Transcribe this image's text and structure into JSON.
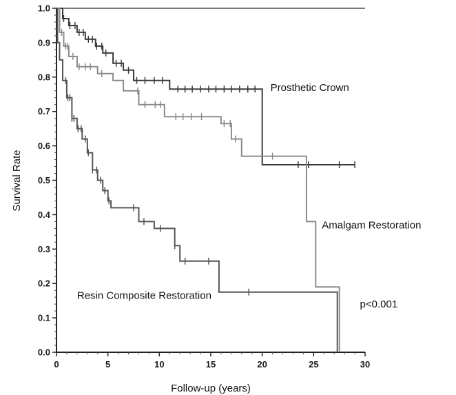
{
  "chart_data": {
    "type": "line",
    "xlabel": "Follow-up (years)",
    "ylabel": "Survival Rate",
    "xlim": [
      0,
      30
    ],
    "ylim": [
      0,
      1
    ],
    "x_ticks": [
      "0",
      "5",
      "10",
      "15",
      "20",
      "25",
      "30"
    ],
    "y_ticks": [
      "0.0",
      "0.1",
      "0.2",
      "0.3",
      "0.4",
      "0.5",
      "0.6",
      "0.7",
      "0.8",
      "0.9",
      "1.0"
    ],
    "step": true,
    "grid": false,
    "series": [
      {
        "name": "Prosthetic Crown",
        "color": "#3a3a3a",
        "x": [
          0,
          0.6,
          1.2,
          2.0,
          2.8,
          3.8,
          4.5,
          5.5,
          6.5,
          7.5,
          8.5,
          11.0,
          16.0,
          20.0,
          29.0
        ],
        "y": [
          1.0,
          0.97,
          0.95,
          0.93,
          0.91,
          0.89,
          0.87,
          0.84,
          0.82,
          0.79,
          0.79,
          0.765,
          0.765,
          0.545,
          0.545
        ],
        "censored_x": [
          0.7,
          1.3,
          1.8,
          2.2,
          2.6,
          3.1,
          3.5,
          3.9,
          4.4,
          4.8,
          5.8,
          6.3,
          7.0,
          7.8,
          8.6,
          9.5,
          10.3,
          11.8,
          12.5,
          13.2,
          14.0,
          14.8,
          15.5,
          16.3,
          17.0,
          17.8,
          18.6,
          19.3,
          23.5,
          24.5,
          27.5,
          29.0
        ]
      },
      {
        "name": "Amalgam Restoration",
        "color": "#8a8a8a",
        "x": [
          0,
          0.3,
          0.7,
          1.2,
          2.0,
          4.0,
          5.5,
          6.5,
          8.0,
          10.5,
          16.0,
          17.0,
          18.0,
          24.0,
          24.3,
          25.2,
          27.5
        ],
        "y": [
          1.0,
          0.93,
          0.89,
          0.86,
          0.83,
          0.81,
          0.79,
          0.76,
          0.72,
          0.685,
          0.665,
          0.62,
          0.57,
          0.57,
          0.38,
          0.19,
          0.0
        ],
        "censored_x": [
          0.5,
          0.9,
          1.1,
          1.6,
          2.2,
          2.8,
          3.3,
          4.4,
          7.9,
          8.6,
          9.6,
          10.1,
          11.6,
          12.3,
          13.1,
          14.1,
          16.3,
          16.9,
          17.4,
          21.0
        ]
      },
      {
        "name": "Resin Composite Restoration",
        "color": "#555555",
        "x": [
          0,
          0.1,
          0.3,
          0.6,
          1.0,
          1.5,
          2.0,
          2.5,
          3.0,
          3.5,
          4.0,
          4.5,
          5.0,
          5.3,
          6.0,
          8.0,
          9.5,
          11.5,
          12.0,
          15.8,
          27.3
        ],
        "y": [
          1.0,
          0.9,
          0.85,
          0.79,
          0.74,
          0.68,
          0.65,
          0.62,
          0.58,
          0.53,
          0.5,
          0.47,
          0.44,
          0.42,
          0.42,
          0.38,
          0.36,
          0.31,
          0.265,
          0.175,
          0.0
        ],
        "censored_x": [
          0.9,
          1.1,
          1.3,
          1.5,
          1.7,
          2.1,
          2.4,
          2.8,
          3.1,
          3.5,
          3.9,
          4.3,
          4.7,
          5.1,
          7.5,
          8.5,
          10.1,
          11.5,
          12.5,
          14.8,
          18.7
        ]
      }
    ],
    "annotations": [
      {
        "text": "Prosthetic Crown",
        "x": 20.8,
        "y": 0.77
      },
      {
        "text": "Amalgam Restoration",
        "x": 25.8,
        "y": 0.37
      },
      {
        "text": "Resin Composite Restoration",
        "x": 2.0,
        "y": 0.165
      },
      {
        "text": "p<0.001",
        "x": 29.5,
        "y": 0.14
      }
    ]
  }
}
